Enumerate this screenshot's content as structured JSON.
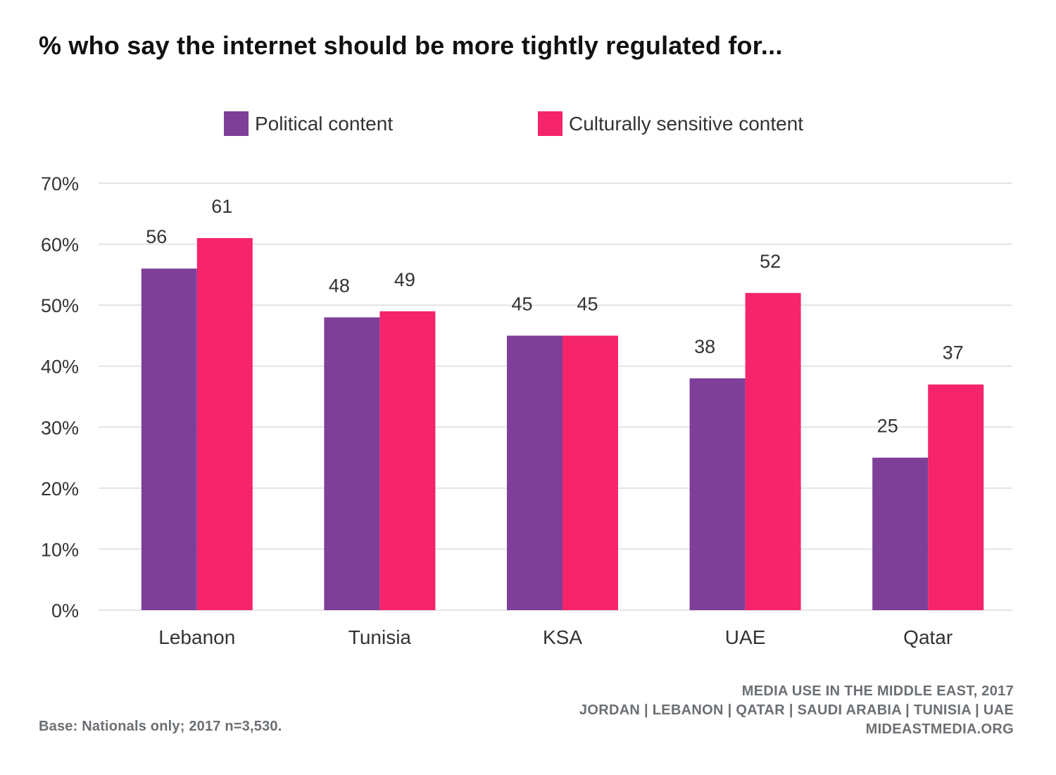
{
  "chart_data": {
    "type": "bar",
    "title": "% who say the internet should be more tightly regulated for...",
    "categories": [
      "Lebanon",
      "Tunisia",
      "KSA",
      "UAE",
      "Qatar"
    ],
    "series": [
      {
        "name": "Political content",
        "color": "#7d3f98",
        "values": [
          56,
          48,
          45,
          38,
          25
        ]
      },
      {
        "name": "Culturally sensitive content",
        "color": "#f5246b",
        "values": [
          61,
          49,
          45,
          52,
          37
        ]
      }
    ],
    "ylim": [
      0,
      70
    ],
    "yticks": [
      "0%",
      "10%",
      "20%",
      "30%",
      "40%",
      "50%",
      "60%",
      "70%"
    ],
    "ytick_values": [
      0,
      10,
      20,
      30,
      40,
      50,
      60,
      70
    ],
    "grid": true,
    "legend_position": "top-center",
    "data_labels": true
  },
  "footer": {
    "source_line1": "MEDIA USE IN THE MIDDLE EAST, 2017",
    "source_line2": "JORDAN | LEBANON | QATAR | SAUDI ARABIA | TUNISIA | UAE",
    "source_line3": "MIDEASTMEDIA.ORG",
    "base_note": "Base: Nationals only; 2017 n=3,530."
  }
}
